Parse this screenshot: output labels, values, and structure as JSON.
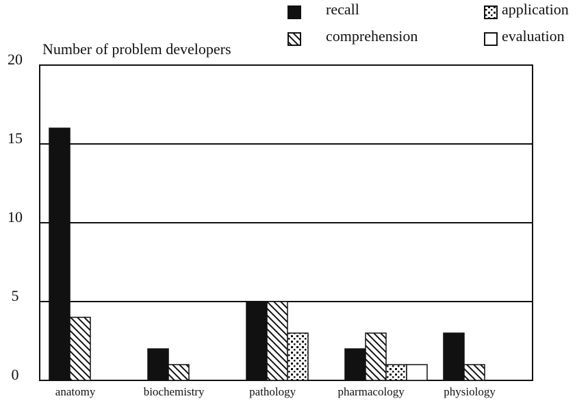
{
  "chart_data": {
    "type": "bar",
    "title": "Number of problem developers",
    "categories": [
      "anatomy",
      "biochemistry",
      "pathology",
      "pharmacology",
      "physiology"
    ],
    "series": [
      {
        "name": "recall",
        "color": "#111111",
        "pattern": "solid",
        "values": [
          16,
          2,
          5,
          2,
          3
        ]
      },
      {
        "name": "comprehension",
        "color": "#111111",
        "pattern": "hatch",
        "values": [
          4,
          1,
          5,
          3,
          1
        ]
      },
      {
        "name": "application",
        "color": "#111111",
        "pattern": "dots",
        "values": [
          0,
          0,
          3,
          1,
          0
        ]
      },
      {
        "name": "evaluation",
        "color": "#111111",
        "pattern": "empty",
        "values": [
          0,
          0,
          0,
          1,
          0
        ]
      }
    ],
    "ylim": [
      0,
      20
    ],
    "yticks": [
      0,
      5,
      10,
      15,
      20
    ],
    "grid": true,
    "legend": "upper right"
  }
}
